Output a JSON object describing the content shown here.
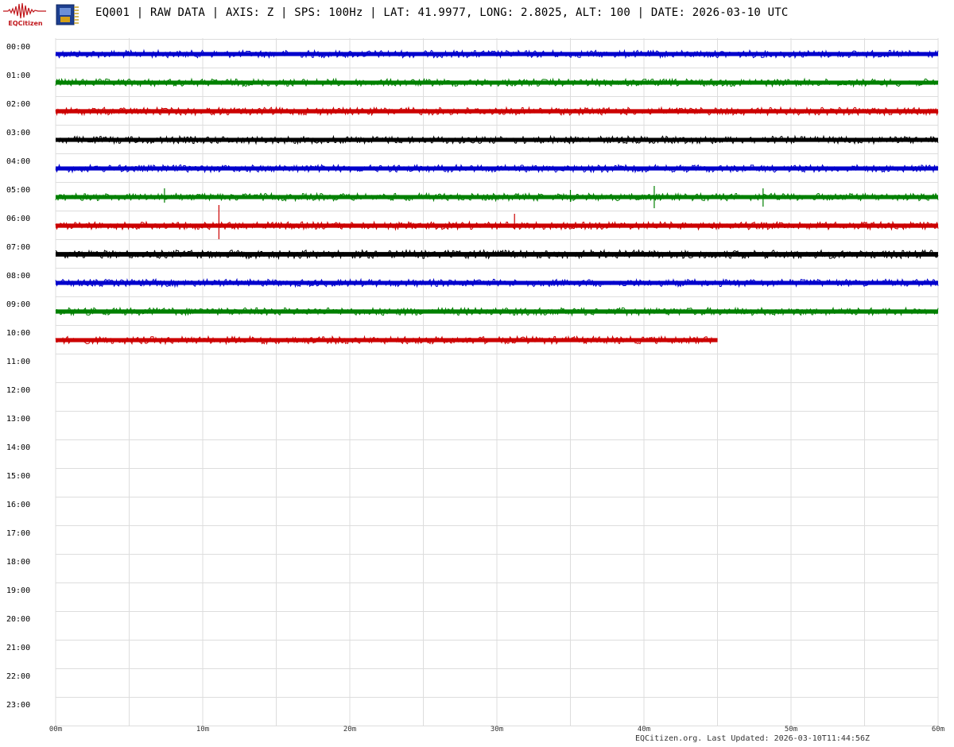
{
  "header": {
    "logo_icon": "seismograph-logo-icon",
    "logo_text": "EQCitizen",
    "device_icon": "microchip-icon",
    "title": "EQ001 | RAW DATA | AXIS: Z | SPS: 100Hz | LAT: 41.9977, LONG: 2.8025, ALT: 100 | DATE: 2026-03-10 UTC"
  },
  "footer": {
    "text": "EQCitizen.org. Last Updated: 2026-03-10T11:44:56Z"
  },
  "colors": {
    "blue": "#0000cc",
    "green": "#008000",
    "red": "#cc0000",
    "black": "#000000",
    "grid": "#dddddd",
    "label": "#000000"
  },
  "chart_data": {
    "type": "line",
    "plot_kind": "helicorder",
    "title": "EQ001 | RAW DATA | AXIS: Z | SPS: 100Hz | LAT: 41.9977, LONG: 2.8025, ALT: 100 | DATE: 2026-03-10 UTC",
    "xlabel": "",
    "ylabel": "",
    "x_unit": "minutes",
    "xlim": [
      0,
      60
    ],
    "x_ticks": [
      0,
      10,
      20,
      30,
      40,
      50,
      60
    ],
    "x_tick_labels": [
      "00m",
      "10m",
      "20m",
      "30m",
      "40m",
      "50m",
      "60m"
    ],
    "x_minor_step": 5,
    "row_labels": [
      "00:00",
      "01:00",
      "02:00",
      "03:00",
      "04:00",
      "05:00",
      "06:00",
      "07:00",
      "08:00",
      "09:00",
      "10:00",
      "11:00",
      "12:00",
      "13:00",
      "14:00",
      "15:00",
      "16:00",
      "17:00",
      "18:00",
      "19:00",
      "20:00",
      "21:00",
      "22:00",
      "23:00"
    ],
    "grid": true,
    "color_cycle": [
      "blue",
      "green",
      "red",
      "black"
    ],
    "traces": [
      {
        "hour": "00:00",
        "color": "blue",
        "end_minute": 60,
        "noise": 0.55,
        "spikes": []
      },
      {
        "hour": "01:00",
        "color": "green",
        "end_minute": 60,
        "noise": 0.55,
        "spikes": []
      },
      {
        "hour": "02:00",
        "color": "red",
        "end_minute": 60,
        "noise": 0.6,
        "spikes": []
      },
      {
        "hour": "03:00",
        "color": "black",
        "end_minute": 60,
        "noise": 0.55,
        "spikes": []
      },
      {
        "hour": "04:00",
        "color": "blue",
        "end_minute": 60,
        "noise": 0.55,
        "spikes": []
      },
      {
        "hour": "05:00",
        "color": "green",
        "end_minute": 60,
        "noise": 0.55,
        "spikes": [
          {
            "minute": 7.4,
            "up": 11,
            "down": 7
          },
          {
            "minute": 35.0,
            "up": 9,
            "down": 6
          },
          {
            "minute": 40.7,
            "up": 14,
            "down": 14
          },
          {
            "minute": 48.1,
            "up": 11,
            "down": 12
          }
        ]
      },
      {
        "hour": "06:00",
        "color": "red",
        "end_minute": 60,
        "noise": 0.6,
        "spikes": [
          {
            "minute": 11.1,
            "up": 26,
            "down": 17
          },
          {
            "minute": 31.2,
            "up": 15,
            "down": 4
          }
        ]
      },
      {
        "hour": "07:00",
        "color": "black",
        "end_minute": 60,
        "noise": 0.75,
        "spikes": []
      },
      {
        "hour": "08:00",
        "color": "blue",
        "end_minute": 60,
        "noise": 0.55,
        "spikes": []
      },
      {
        "hour": "09:00",
        "color": "green",
        "end_minute": 60,
        "noise": 0.6,
        "spikes": []
      },
      {
        "hour": "10:00",
        "color": "red",
        "end_minute": 45,
        "noise": 0.55,
        "spikes": []
      }
    ]
  }
}
